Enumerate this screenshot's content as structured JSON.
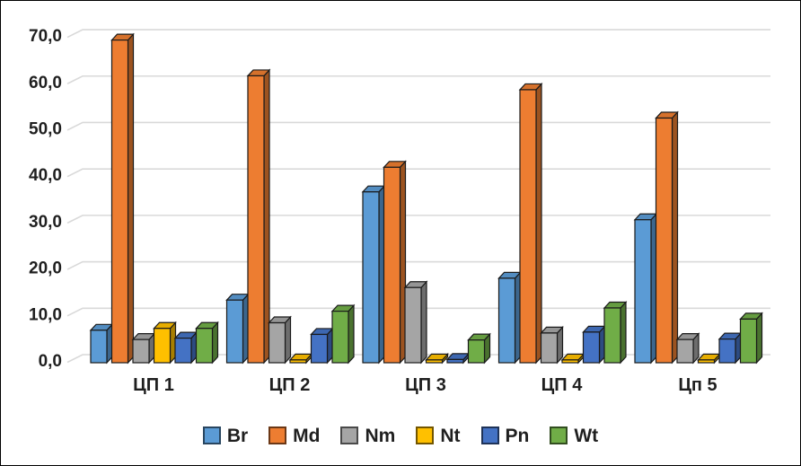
{
  "chart_data": {
    "type": "bar",
    "style": "3d-clustered-column",
    "title": "",
    "xlabel": "",
    "ylabel": "",
    "categories": [
      "ЦП 1",
      "ЦП 2",
      "ЦП 3",
      "ЦП 4",
      "Цп 5"
    ],
    "series": [
      {
        "name": "Br",
        "color": "#5B9BD5",
        "values": [
          7.0,
          13.5,
          36.8,
          18.2,
          30.8
        ]
      },
      {
        "name": "Md",
        "color": "#ED7D31",
        "values": [
          69.5,
          61.8,
          42.1,
          58.8,
          52.7
        ]
      },
      {
        "name": "Nm",
        "color": "#A5A5A5",
        "values": [
          5.0,
          8.6,
          16.2,
          6.4,
          5.0
        ]
      },
      {
        "name": "Nt",
        "color": "#FFC000",
        "values": [
          7.4,
          0.6,
          0.6,
          0.6,
          0.6
        ]
      },
      {
        "name": "Pn",
        "color": "#4472C4",
        "values": [
          5.3,
          6.1,
          0.7,
          6.6,
          5.1
        ]
      },
      {
        "name": "Wt",
        "color": "#70AD47",
        "values": [
          7.4,
          11.1,
          4.9,
          11.8,
          9.4
        ]
      }
    ],
    "ylim": [
      0,
      70
    ],
    "y_tick_step": 10,
    "y_ticks": [
      "0,0",
      "10,0",
      "20,0",
      "30,0",
      "40,0",
      "50,0",
      "60,0",
      "70,0"
    ],
    "grid": true,
    "legend_position": "bottom",
    "colors": {
      "grid_line": "#D9D9D9",
      "bar_outline": "#1a1a1a",
      "text": "#1f1f1f",
      "background": "#FFFFFF",
      "frame_border": "#000000"
    }
  }
}
